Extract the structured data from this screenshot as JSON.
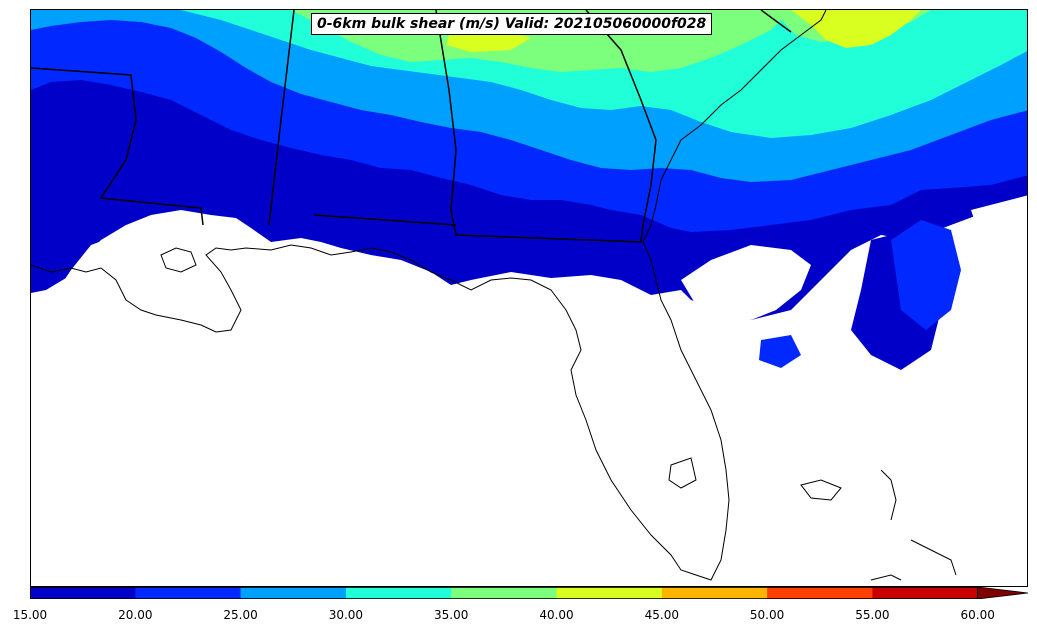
{
  "map": {
    "title": "0-6km bulk shear (m/s) Valid: 202105060000f028",
    "region": "Southeastern United States",
    "variable": "0-6km bulk shear",
    "units": "m/s"
  },
  "colorbar": {
    "levels": [
      15,
      20,
      25,
      30,
      35,
      40,
      45,
      50,
      55,
      60
    ],
    "tick_labels": [
      "15.00",
      "20.00",
      "25.00",
      "30.00",
      "35.00",
      "40.00",
      "45.00",
      "50.00",
      "55.00",
      "60.00"
    ],
    "colors": [
      "#0000c8",
      "#0028ff",
      "#00a0ff",
      "#20ffd8",
      "#7cff7c",
      "#d8ff20",
      "#ffb400",
      "#ff4000",
      "#c80000",
      "#800000"
    ],
    "extend": "max"
  }
}
